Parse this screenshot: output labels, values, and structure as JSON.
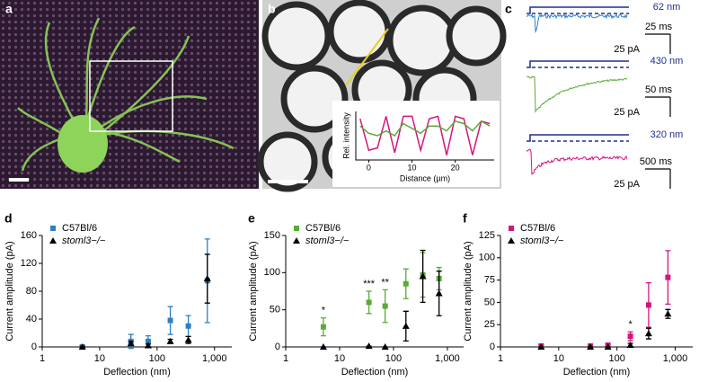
{
  "panel_labels": [
    "a",
    "b",
    "c"
  ],
  "panel_c": {
    "traces": [
      {
        "deflection": "62 nm",
        "time_scale": "25 ms",
        "current_scale": "25 pA",
        "color": "#2f7fc2"
      },
      {
        "deflection": "430 nm",
        "time_scale": "50 ms",
        "current_scale": "25 pA",
        "color": "#5aab35"
      },
      {
        "deflection": "320 nm",
        "time_scale": "500 ms",
        "current_scale": "25 pA",
        "color": "#d4157f"
      }
    ]
  },
  "chart_data": [
    {
      "type": "line",
      "x_label": "Distance (µm)",
      "y_label": "Rel. intensity",
      "x": [
        -2,
        0,
        2,
        4,
        6,
        8,
        10,
        12,
        14,
        16,
        18,
        20,
        22,
        24,
        26,
        28
      ],
      "xlim": [
        -3,
        29
      ],
      "xticks": [
        0,
        10,
        20
      ],
      "ylim": [
        0,
        1
      ],
      "series": [
        {
          "color": "#d4157f",
          "values": [
            0.85,
            0.2,
            0.25,
            0.9,
            0.15,
            0.9,
            0.9,
            0.2,
            0.85,
            0.9,
            0.1,
            0.9,
            0.85,
            0.1,
            0.8,
            0.75
          ]
        },
        {
          "color": "#5aab35",
          "values": [
            0.7,
            0.55,
            0.5,
            0.6,
            0.5,
            0.75,
            0.65,
            0.55,
            0.7,
            0.7,
            0.6,
            0.8,
            0.75,
            0.6,
            0.8,
            0.7
          ]
        }
      ]
    },
    {
      "type": "scatter",
      "label": "d",
      "x_label": "Deflection (nm)",
      "y_label": "Current amplitude (pA)",
      "x": [
        5,
        35,
        70,
        170,
        350,
        750
      ],
      "xscale": "log",
      "xlim": [
        1,
        2000
      ],
      "xticks": [
        1,
        10,
        100,
        {
          "value": 1000,
          "label": "1,000"
        }
      ],
      "ylim": [
        0,
        160
      ],
      "yticks": [
        0,
        40,
        80,
        120,
        160
      ],
      "legend": "upper left",
      "series": [
        {
          "name": "C57Bl/6",
          "color": "#2f7fc2",
          "marker": "square",
          "values": [
            0,
            8,
            8,
            38,
            30,
            95
          ],
          "errors": [
            2,
            10,
            8,
            20,
            15,
            60
          ]
        },
        {
          "name": "stoml3−/−",
          "color": "#000000",
          "marker": "triangle",
          "values": [
            0,
            5,
            2,
            8,
            10,
            98
          ],
          "errors": [
            1,
            3,
            2,
            3,
            5,
            35
          ]
        }
      ]
    },
    {
      "type": "scatter",
      "label": "e",
      "x_label": "Deflection (nm)",
      "y_label": "Current amplitude (pA)",
      "x": [
        5,
        35,
        70,
        170,
        350,
        700
      ],
      "xscale": "log",
      "xlim": [
        1,
        2000
      ],
      "xticks": [
        1,
        10,
        100,
        {
          "value": 1000,
          "label": "1,000"
        }
      ],
      "ylim": [
        0,
        150
      ],
      "yticks": [
        0,
        50,
        100,
        150
      ],
      "legend": "upper left",
      "significance": [
        "*",
        "***",
        "**",
        null,
        null,
        null
      ],
      "series": [
        {
          "name": "C57Bl/6",
          "color": "#5aab35",
          "marker": "square",
          "values": [
            27,
            60,
            55,
            85,
            97,
            92
          ],
          "errors": [
            12,
            15,
            22,
            20,
            30,
            15
          ]
        },
        {
          "name": "stoml3−/−",
          "color": "#000000",
          "marker": "triangle",
          "values": [
            0,
            1,
            0,
            28,
            95,
            72
          ],
          "errors": [
            0,
            0,
            0,
            20,
            35,
            30
          ]
        }
      ]
    },
    {
      "type": "scatter",
      "label": "f",
      "x_label": "Deflection (nm)",
      "y_label": "Current amplitude (pA)",
      "x": [
        5,
        35,
        70,
        170,
        350,
        750
      ],
      "xscale": "log",
      "xlim": [
        1,
        2000
      ],
      "xticks": [
        1,
        10,
        100,
        {
          "value": 1000,
          "label": "1,000"
        }
      ],
      "ylim": [
        0,
        125
      ],
      "yticks": [
        0,
        25,
        50,
        75,
        100,
        125
      ],
      "legend": "upper left",
      "significance": [
        null,
        null,
        null,
        "*",
        null,
        null
      ],
      "series": [
        {
          "name": "C57Bl/6",
          "color": "#d4157f",
          "marker": "square",
          "values": [
            1,
            1,
            2,
            12,
            47,
            78
          ],
          "errors": [
            1,
            1,
            2,
            5,
            25,
            30
          ]
        },
        {
          "name": "stoml3−/−",
          "color": "#000000",
          "marker": "triangle",
          "values": [
            0,
            0,
            0,
            2,
            15,
            37
          ],
          "errors": [
            0,
            0,
            0,
            2,
            6,
            5
          ]
        }
      ]
    }
  ]
}
